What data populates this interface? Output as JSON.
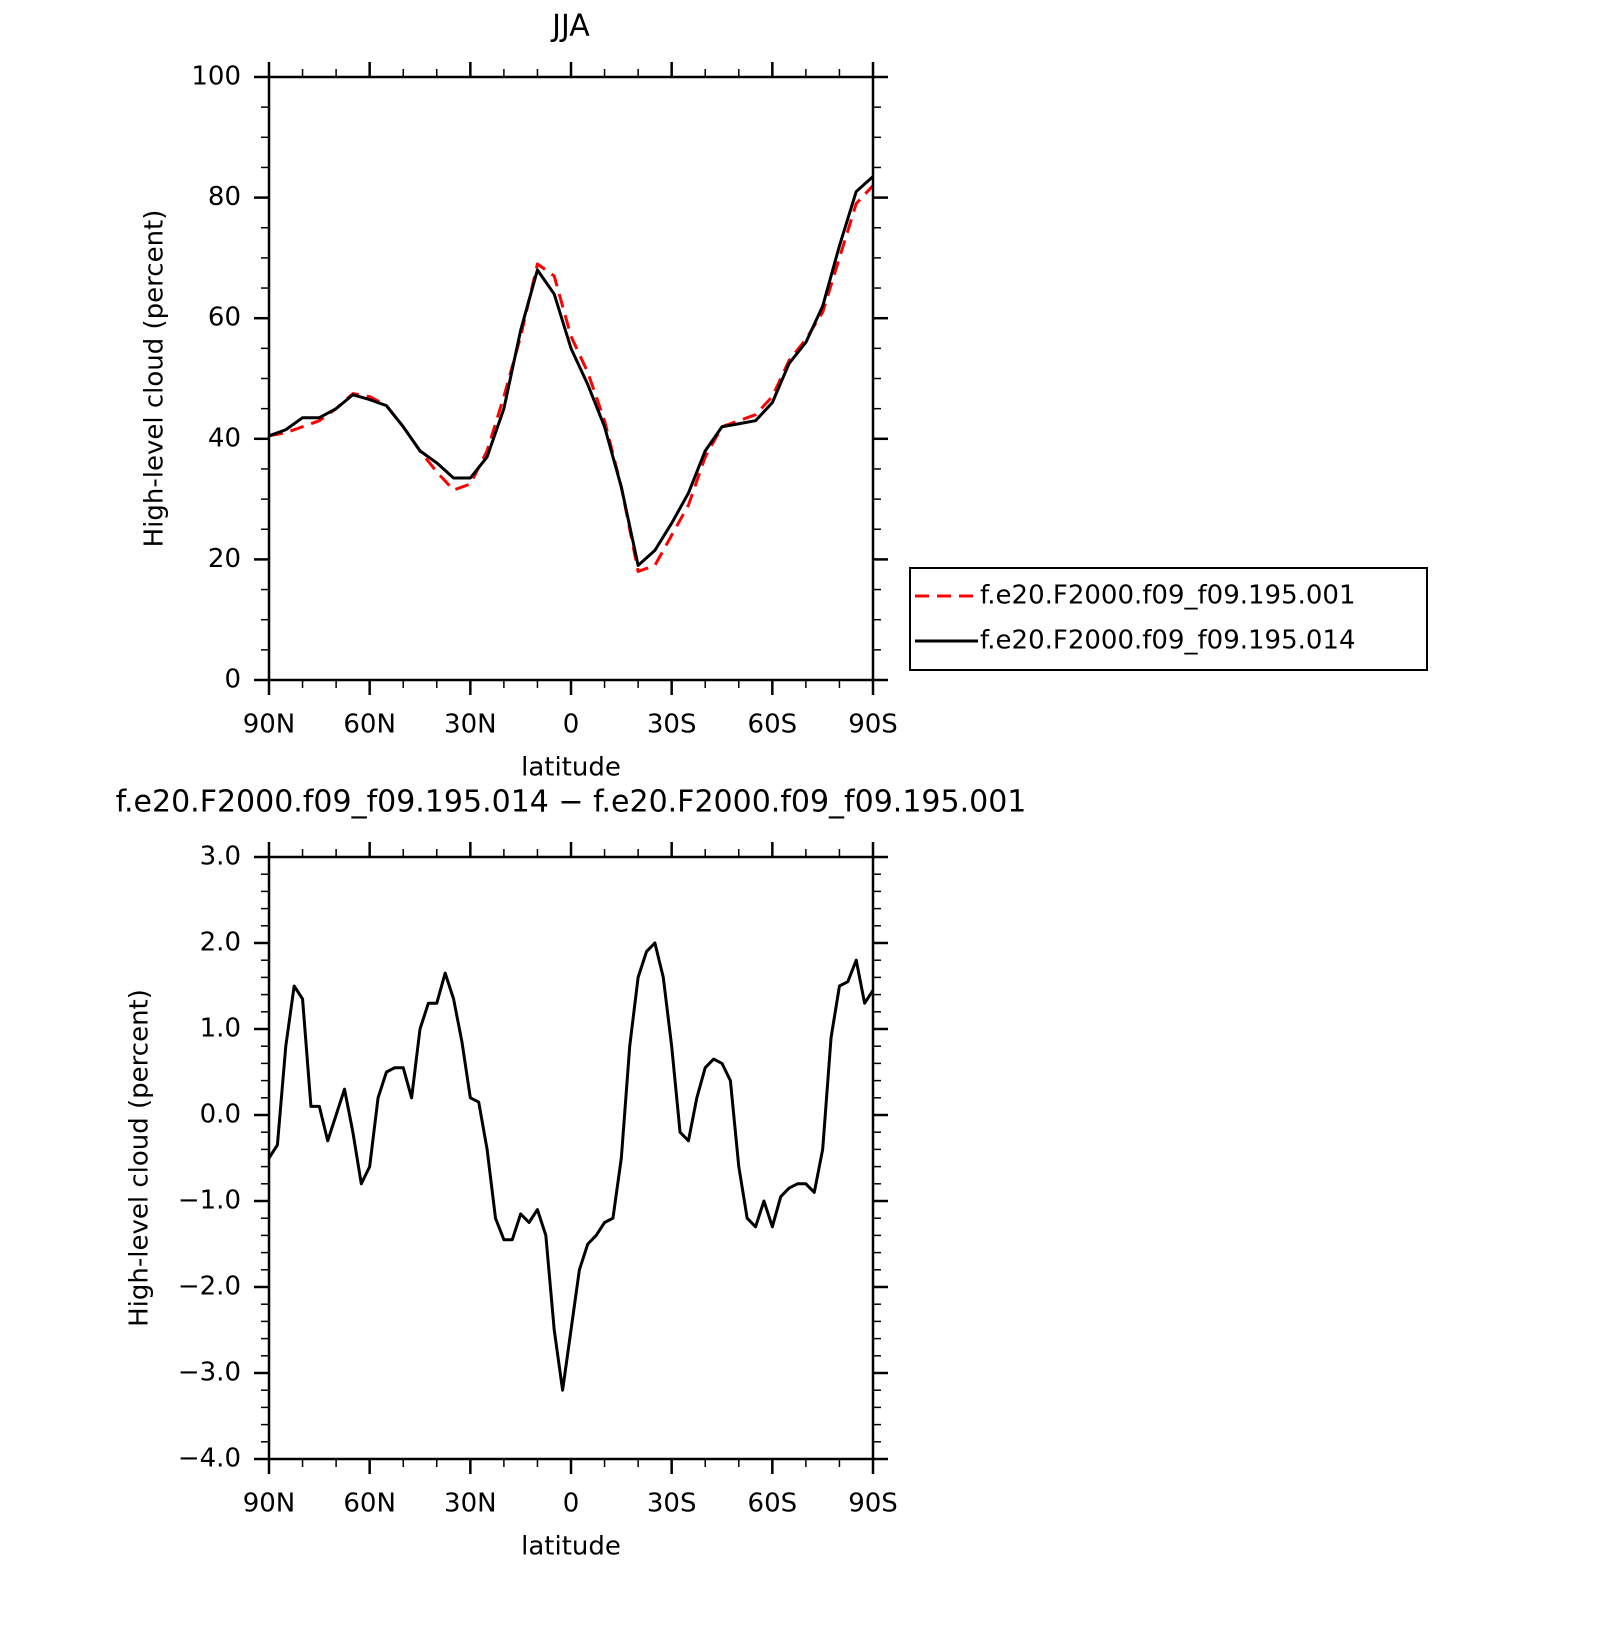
{
  "chart_data": [
    {
      "type": "line",
      "title": "JJA",
      "xlabel": "latitude",
      "ylabel": "High-level cloud (percent)",
      "x": [
        90,
        85,
        80,
        75,
        70,
        65,
        60,
        55,
        50,
        45,
        40,
        35,
        30,
        25,
        20,
        15,
        10,
        5,
        0,
        -5,
        -10,
        -15,
        -20,
        -25,
        -30,
        -35,
        -40,
        -45,
        -50,
        -55,
        -60,
        -65,
        -70,
        -75,
        -80,
        -85,
        -90
      ],
      "series": [
        {
          "name": "f.e20.F2000.f09_f09.195.001",
          "color": "#ff0000",
          "dash": true,
          "values": [
            40.5,
            41,
            42,
            43,
            45,
            47.5,
            47,
            45.5,
            42,
            38,
            34.5,
            31.5,
            32.5,
            38,
            47,
            57,
            69,
            67,
            57,
            51,
            43,
            32,
            18,
            19,
            24,
            29,
            37,
            42,
            43,
            44,
            47,
            53,
            56.5,
            61,
            70,
            79,
            82
          ]
        },
        {
          "name": "f.e20.F2000.f09_f09.195.014",
          "color": "#000000",
          "dash": false,
          "values": [
            40.5,
            41.5,
            43.5,
            43.5,
            45,
            47.3,
            46.5,
            45.5,
            42,
            38,
            36,
            33.5,
            33.5,
            37,
            45,
            58,
            68,
            64,
            55,
            49,
            42,
            32,
            19,
            21.5,
            26,
            31,
            38,
            42,
            42.5,
            43,
            46,
            52.5,
            56,
            62,
            72,
            81,
            83.5
          ]
        }
      ],
      "xlim": [
        90,
        -90
      ],
      "ylim": [
        0,
        100
      ],
      "xticks": [
        {
          "value": 90,
          "label": "90N"
        },
        {
          "value": 60,
          "label": "60N"
        },
        {
          "value": 30,
          "label": "30N"
        },
        0,
        {
          "value": -30,
          "label": "30S"
        },
        {
          "value": -60,
          "label": "60S"
        },
        {
          "value": -90,
          "label": "90S"
        }
      ],
      "yticks": [
        0,
        20,
        40,
        60,
        80,
        100
      ],
      "legend": "right"
    },
    {
      "type": "line",
      "title": "f.e20.F2000.f09_f09.195.014 − f.e20.F2000.f09_f09.195.001",
      "xlabel": "latitude",
      "ylabel": "High-level cloud (percent)",
      "x": [
        90,
        87.5,
        85,
        82.5,
        80,
        77.5,
        75,
        72.5,
        70,
        67.5,
        65,
        62.5,
        60,
        57.5,
        55,
        52.5,
        50,
        47.5,
        45,
        42.5,
        40,
        37.5,
        35,
        32.5,
        30,
        27.5,
        25,
        22.5,
        20,
        17.5,
        15,
        12.5,
        10,
        7.5,
        5,
        2.5,
        0,
        -2.5,
        -5,
        -7.5,
        -10,
        -12.5,
        -15,
        -17.5,
        -20,
        -22.5,
        -25,
        -27.5,
        -30,
        -32.5,
        -35,
        -37.5,
        -40,
        -42.5,
        -45,
        -47.5,
        -50,
        -52.5,
        -55,
        -57.5,
        -60,
        -62.5,
        -65,
        -67.5,
        -70,
        -72.5,
        -75,
        -77.5,
        -80,
        -82.5,
        -85,
        -87.5,
        -90
      ],
      "series": [
        {
          "name": "f.e20.F2000.f09_f09.195.014 − f.e20.F2000.f09_f09.195.001",
          "color": "#000000",
          "dash": false,
          "values": [
            -0.5,
            -0.35,
            0.8,
            1.5,
            1.35,
            0.1,
            0.1,
            -0.3,
            0.0,
            0.3,
            -0.2,
            -0.8,
            -0.6,
            0.2,
            0.5,
            0.55,
            0.55,
            0.2,
            1.0,
            1.3,
            1.3,
            1.65,
            1.35,
            0.85,
            0.2,
            0.15,
            -0.4,
            -1.2,
            -1.45,
            -1.45,
            -1.15,
            -1.25,
            -1.1,
            -1.4,
            -2.5,
            -3.2,
            -2.5,
            -1.8,
            -1.5,
            -1.4,
            -1.25,
            -1.2,
            -0.5,
            0.8,
            1.6,
            1.9,
            2.0,
            1.6,
            0.8,
            -0.2,
            -0.3,
            0.2,
            0.55,
            0.65,
            0.6,
            0.4,
            -0.6,
            -1.2,
            -1.3,
            -1.0,
            -1.3,
            -0.95,
            -0.85,
            -0.8,
            -0.8,
            -0.9,
            -0.4,
            0.9,
            1.5,
            1.55,
            1.8,
            1.3,
            1.45
          ]
        }
      ],
      "xlim": [
        90,
        -90
      ],
      "ylim": [
        -4,
        3
      ],
      "xticks": [
        {
          "value": 90,
          "label": "90N"
        },
        {
          "value": 60,
          "label": "60N"
        },
        {
          "value": 30,
          "label": "30N"
        },
        0,
        {
          "value": -30,
          "label": "30S"
        },
        {
          "value": -60,
          "label": "60S"
        },
        {
          "value": -90,
          "label": "90S"
        }
      ],
      "yticks": [
        {
          "value": 3,
          "label": "3.0"
        },
        {
          "value": 2,
          "label": "2.0"
        },
        {
          "value": 1,
          "label": "1.0"
        },
        {
          "value": 0,
          "label": "0.0"
        },
        {
          "value": -1,
          "label": "−1.0"
        },
        {
          "value": -2,
          "label": "−2.0"
        },
        {
          "value": -3,
          "label": "−3.0"
        },
        {
          "value": -4,
          "label": "−4.0"
        }
      ]
    }
  ]
}
